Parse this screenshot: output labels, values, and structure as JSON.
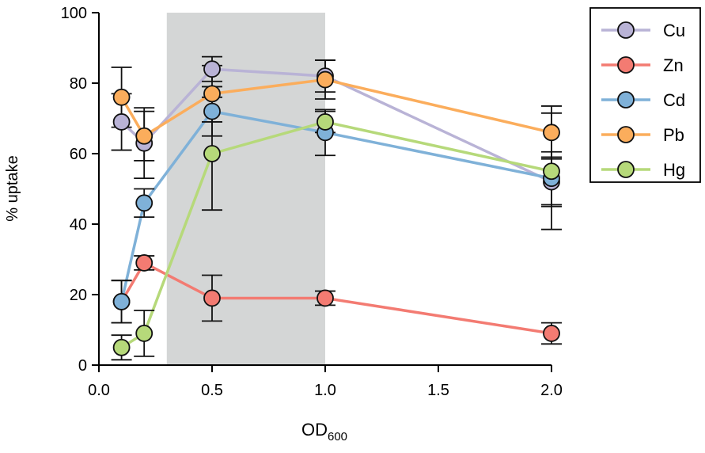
{
  "chart_data": {
    "type": "line",
    "title": "",
    "xlabel_main": "OD",
    "xlabel_sub": "600",
    "ylabel": "% uptake",
    "xlim": [
      0,
      2.0
    ],
    "ylim": [
      0,
      100
    ],
    "xticks": [
      0.0,
      0.5,
      1.0,
      1.5,
      2.0
    ],
    "xtick_labels": [
      "0.0",
      "0.5",
      "1.0",
      "1.5",
      "2.0"
    ],
    "yticks": [
      0,
      20,
      40,
      60,
      80,
      100
    ],
    "ytick_labels": [
      "0",
      "20",
      "40",
      "60",
      "80",
      "100"
    ],
    "shaded_region": {
      "x0": 0.3,
      "x1": 1.0,
      "color": "#d4d6d6"
    },
    "grid": false,
    "legend_position": "outside-right",
    "x": [
      0.1,
      0.2,
      0.5,
      1.0,
      2.0
    ],
    "series": [
      {
        "name": "Cu",
        "color": "#b9b3d6",
        "values": [
          69,
          63,
          84,
          82,
          52
        ],
        "errors": [
          8,
          10,
          3.5,
          4.5,
          7
        ]
      },
      {
        "name": "Zn",
        "color": "#f37b72",
        "values": [
          18,
          29,
          19,
          19,
          9
        ],
        "errors": [
          6,
          2,
          6.5,
          2,
          3
        ]
      },
      {
        "name": "Cd",
        "color": "#7fb1d8",
        "values": [
          18,
          46,
          72,
          66,
          53
        ],
        "errors": [
          6,
          4,
          7,
          6.5,
          7.5
        ]
      },
      {
        "name": "Pb",
        "color": "#fbad5c",
        "values": [
          76,
          65,
          77,
          81,
          66
        ],
        "errors": [
          8.5,
          7,
          8,
          5.5,
          7.5
        ]
      },
      {
        "name": "Hg",
        "color": "#b6d97a",
        "values": [
          5,
          9,
          60,
          69,
          55
        ],
        "errors": [
          3.5,
          6.5,
          16,
          3,
          16.5
        ]
      }
    ]
  }
}
